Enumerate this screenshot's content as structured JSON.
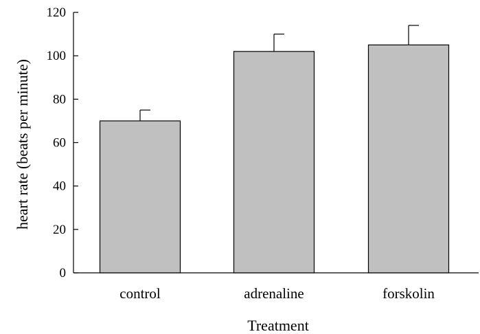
{
  "chart_data": {
    "type": "bar",
    "title": "",
    "xlabel": "Treatment",
    "ylabel": "heart rate (beats per minute)",
    "categories": [
      "control",
      "adrenaline",
      "forskolin"
    ],
    "values": [
      70,
      102,
      105
    ],
    "error_upper": [
      5,
      8,
      9
    ],
    "ylim": [
      0,
      120
    ],
    "yticks": [
      0,
      20,
      40,
      60,
      80,
      100,
      120
    ],
    "grid": false,
    "legend": "none",
    "bar_color": "#c0c0c0",
    "edge_color": "#000000"
  }
}
